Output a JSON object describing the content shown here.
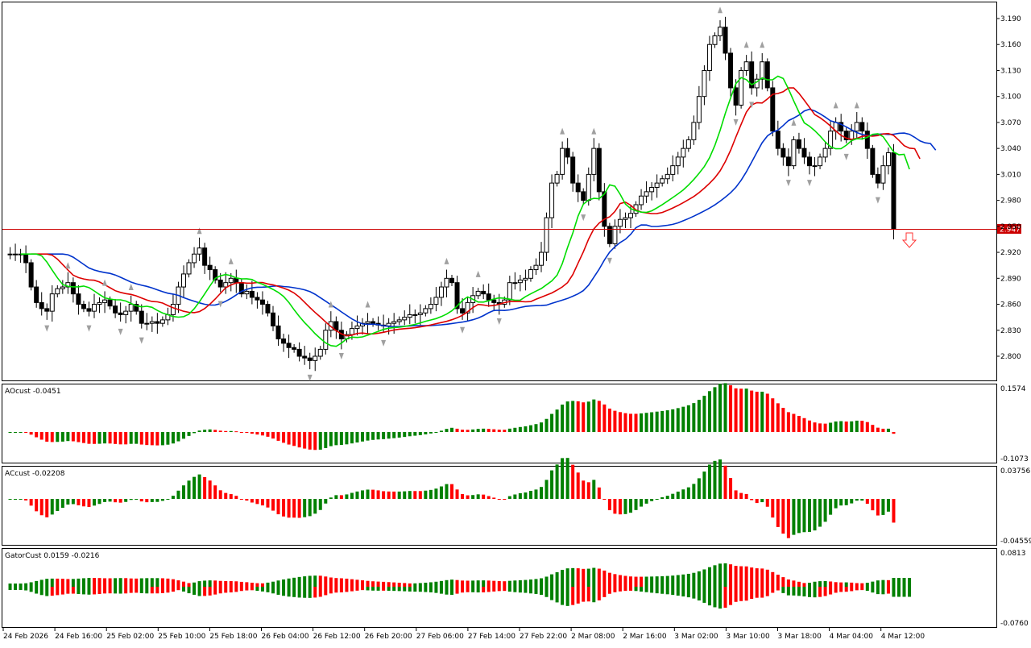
{
  "colors": {
    "up": "#008000",
    "down": "#ff0000",
    "bull_candle": "#ffffff",
    "bear_candle": "#000000",
    "line_green": "#00dd00",
    "line_red": "#dd0000",
    "line_blue": "#0033cc",
    "price_line": "#cc0000",
    "fractal": "#a0a0a0",
    "arrow": "#ff3333"
  },
  "main": {
    "price_tag": "2.947",
    "y_ticks": [
      "3.190",
      "3.160",
      "3.130",
      "3.100",
      "3.070",
      "3.040",
      "3.010",
      "2.980",
      "2.950",
      "2.920",
      "2.890",
      "2.860",
      "2.830",
      "2.800"
    ],
    "x_labels": [
      "24 Feb 2026",
      "24 Feb 16:00",
      "25 Feb 02:00",
      "25 Feb 10:00",
      "25 Feb 18:00",
      "26 Feb 04:00",
      "26 Feb 12:00",
      "26 Feb 20:00",
      "27 Feb 06:00",
      "27 Feb 14:00",
      "27 Feb 22:00",
      "2 Mar 08:00",
      "2 Mar 16:00",
      "3 Mar 02:00",
      "3 Mar 10:00",
      "3 Mar 18:00",
      "4 Mar 04:00",
      "4 Mar 12:00"
    ]
  },
  "ao": {
    "label": "AOcust -0.0451",
    "ymax_label": "0.1574",
    "ymin_label": "-0.1073"
  },
  "ac": {
    "label": "ACcust -0.02208",
    "ymax_label": "0.03756",
    "ymin_label": "-0.04559"
  },
  "gator": {
    "label": "GatorCust 0.0159 -0.0216",
    "ymax_label": "0.0813",
    "ymin_label": "-0.0760"
  },
  "chart_data": [
    {
      "type": "candlestick",
      "title": "",
      "current_price": 2.947,
      "ylim": [
        2.785,
        3.2
      ],
      "x_labels": [
        "24 Feb 2026",
        "24 Feb 16:00",
        "25 Feb 02:00",
        "25 Feb 10:00",
        "25 Feb 18:00",
        "26 Feb 04:00",
        "26 Feb 12:00",
        "26 Feb 20:00",
        "27 Feb 06:00",
        "27 Feb 14:00",
        "27 Feb 22:00",
        "2 Mar 08:00",
        "2 Mar 16:00",
        "3 Mar 02:00",
        "3 Mar 10:00",
        "3 Mar 18:00",
        "4 Mar 04:00",
        "4 Mar 12:00"
      ],
      "close_path": [
        2.918,
        2.918,
        2.918,
        2.918,
        2.908,
        2.88,
        2.862,
        2.855,
        2.852,
        2.872,
        2.878,
        2.88,
        2.885,
        2.872,
        2.86,
        2.855,
        2.852,
        2.86,
        2.862,
        2.865,
        2.858,
        2.85,
        2.848,
        2.852,
        2.86,
        2.852,
        2.838,
        2.838,
        2.84,
        2.838,
        2.842,
        2.848,
        2.86,
        2.88,
        2.895,
        2.908,
        2.918,
        2.925,
        2.905,
        2.9,
        2.888,
        2.88,
        2.885,
        2.89,
        2.885,
        2.872,
        2.875,
        2.868,
        2.865,
        2.86,
        2.85,
        2.835,
        2.82,
        2.815,
        2.81,
        2.808,
        2.8,
        2.798,
        2.795,
        2.8,
        2.808,
        2.83,
        2.84,
        2.83,
        2.82,
        2.825,
        2.832,
        2.835,
        2.838,
        2.84,
        2.838,
        2.836,
        2.835,
        2.838,
        2.84,
        2.842,
        2.845,
        2.848,
        2.848,
        2.85,
        2.855,
        2.86,
        2.868,
        2.88,
        2.89,
        2.885,
        2.855,
        2.85,
        2.862,
        2.87,
        2.875,
        2.872,
        2.865,
        2.862,
        2.86,
        2.865,
        2.885,
        2.885,
        2.888,
        2.89,
        2.9,
        2.905,
        2.92,
        2.96,
        3.0,
        3.01,
        3.04,
        3.03,
        3.0,
        2.99,
        2.98,
        3.01,
        3.04,
        2.99,
        2.95,
        2.93,
        2.95,
        2.958,
        2.96,
        2.965,
        2.975,
        2.985,
        2.99,
        2.995,
        3.0,
        3.005,
        3.01,
        3.02,
        3.03,
        3.04,
        3.05,
        3.07,
        3.1,
        3.13,
        3.16,
        3.17,
        3.18,
        3.15,
        3.11,
        3.09,
        3.13,
        3.14,
        3.11,
        3.12,
        3.14,
        3.11,
        3.06,
        3.04,
        3.03,
        3.02,
        3.05,
        3.04,
        3.03,
        3.02,
        3.02,
        3.03,
        3.04,
        3.06,
        3.07,
        3.06,
        3.05,
        3.06,
        3.07,
        3.06,
        3.04,
        3.01,
        3.0,
        3.02,
        3.035,
        2.947
      ]
    },
    {
      "type": "bar",
      "title": "AOcust",
      "value": -0.0451,
      "ylim": [
        -0.1073,
        0.1574
      ]
    },
    {
      "type": "bar",
      "title": "ACcust",
      "value": -0.02208,
      "ylim": [
        -0.04559,
        0.03756
      ]
    },
    {
      "type": "bar",
      "title": "GatorCust",
      "values": [
        0.0159,
        -0.0216
      ],
      "ylim": [
        -0.076,
        0.0813
      ]
    }
  ]
}
